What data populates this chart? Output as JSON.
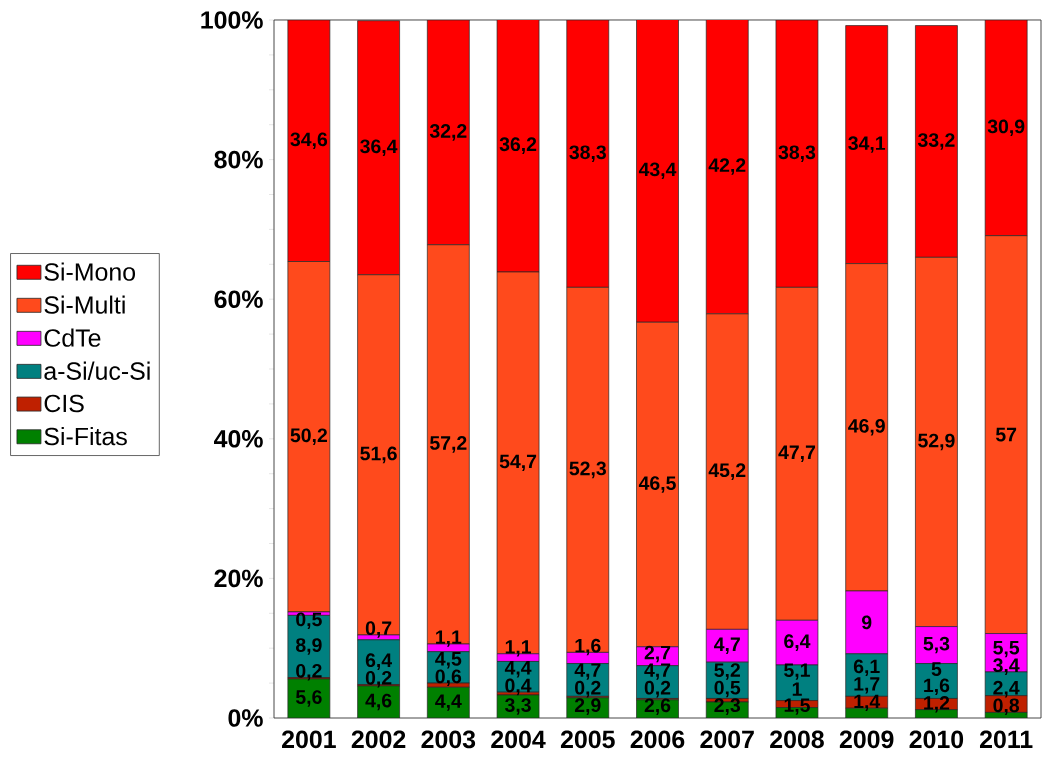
{
  "chart_data": {
    "type": "bar",
    "stacked": true,
    "categories": [
      "2001",
      "2002",
      "2003",
      "2004",
      "2005",
      "2006",
      "2007",
      "2008",
      "2009",
      "2010",
      "2011"
    ],
    "ylim": [
      0,
      100
    ],
    "yticks": [
      {
        "value": 0,
        "label": "0%"
      },
      {
        "value": 5,
        "label": null
      },
      {
        "value": 10,
        "label": null
      },
      {
        "value": 15,
        "label": null
      },
      {
        "value": 20,
        "label": "20%"
      },
      {
        "value": 25,
        "label": null
      },
      {
        "value": 30,
        "label": null
      },
      {
        "value": 35,
        "label": null
      },
      {
        "value": 40,
        "label": "40%"
      },
      {
        "value": 45,
        "label": null
      },
      {
        "value": 50,
        "label": null
      },
      {
        "value": 55,
        "label": null
      },
      {
        "value": 60,
        "label": "60%"
      },
      {
        "value": 65,
        "label": null
      },
      {
        "value": 70,
        "label": null
      },
      {
        "value": 75,
        "label": null
      },
      {
        "value": 80,
        "label": "80%"
      },
      {
        "value": 85,
        "label": null
      },
      {
        "value": 90,
        "label": null
      },
      {
        "value": 95,
        "label": null
      },
      {
        "value": 100,
        "label": "100%"
      }
    ],
    "legend": "left",
    "series": [
      {
        "name": "Si-Fitas",
        "color": "#008000",
        "values": [
          5.6,
          4.6,
          4.4,
          3.3,
          2.9,
          2.6,
          2.3,
          1.5,
          1.4,
          1.2,
          0.8
        ],
        "value_labels": [
          "5,6",
          "4,6",
          "4,4",
          "3,3",
          "2,9",
          "2,6",
          "2,3",
          "1,5",
          "1,4",
          "1,2",
          "0,8"
        ]
      },
      {
        "name": "CIS",
        "color": "#bf2000",
        "values": [
          0.2,
          0.2,
          0.6,
          0.4,
          0.2,
          0.2,
          0.5,
          1,
          1.7,
          1.6,
          2.4
        ],
        "value_labels": [
          "0,2",
          "0,2",
          "0,6",
          "0,4",
          "0,2",
          "0,2",
          "0,5",
          "1",
          "1,7",
          "1,6",
          "2,4"
        ]
      },
      {
        "name": "a-Si/uc-Si",
        "color": "#008080",
        "values": [
          8.9,
          6.4,
          4.5,
          4.4,
          4.7,
          4.7,
          5.2,
          5.1,
          6.1,
          5,
          3.4
        ],
        "value_labels": [
          "8,9",
          "6,4",
          "4,5",
          "4,4",
          "4,7",
          "4,7",
          "5,2",
          "5,1",
          "6,1",
          "5",
          "3,4"
        ]
      },
      {
        "name": "CdTe",
        "color": "#ff00ff",
        "values": [
          0.5,
          0.7,
          1.1,
          1.1,
          1.6,
          2.7,
          4.7,
          6.4,
          9,
          5.3,
          5.5
        ],
        "value_labels": [
          "0,5",
          "0,7",
          "1,1",
          "1,1",
          "1,6",
          "2,7",
          "4,7",
          "6,4",
          "9",
          "5,3",
          "5,5"
        ]
      },
      {
        "name": "Si-Multi",
        "color": "#ff4a1c",
        "values": [
          50.2,
          51.6,
          57.2,
          54.7,
          52.3,
          46.5,
          45.2,
          47.7,
          46.9,
          52.9,
          57
        ],
        "value_labels": [
          "50,2",
          "51,6",
          "57,2",
          "54,7",
          "52,3",
          "46,5",
          "45,2",
          "47,7",
          "46,9",
          "52,9",
          "57"
        ]
      },
      {
        "name": "Si-Mono",
        "color": "#ff0000",
        "values": [
          34.6,
          36.4,
          32.2,
          36.2,
          38.3,
          43.4,
          42.2,
          38.3,
          34.1,
          33.2,
          30.9
        ],
        "value_labels": [
          "34,6",
          "36,4",
          "32,2",
          "36,2",
          "38,3",
          "43,4",
          "42,2",
          "38,3",
          "34,1",
          "33,2",
          "30,9"
        ]
      }
    ]
  }
}
